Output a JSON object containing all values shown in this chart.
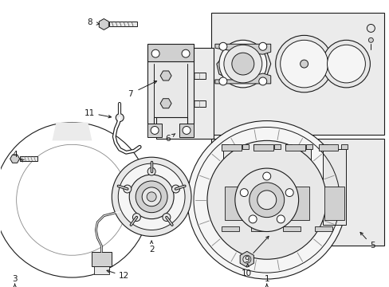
{
  "bg_color": "#ffffff",
  "fig_width": 4.89,
  "fig_height": 3.6,
  "dpi": 100,
  "line_color": "#1a1a1a",
  "fill_light": "#f5f5f5",
  "fill_mid": "#e8e8e8",
  "fill_dark": "#d0d0d0",
  "box_fill": "#ebebeb"
}
